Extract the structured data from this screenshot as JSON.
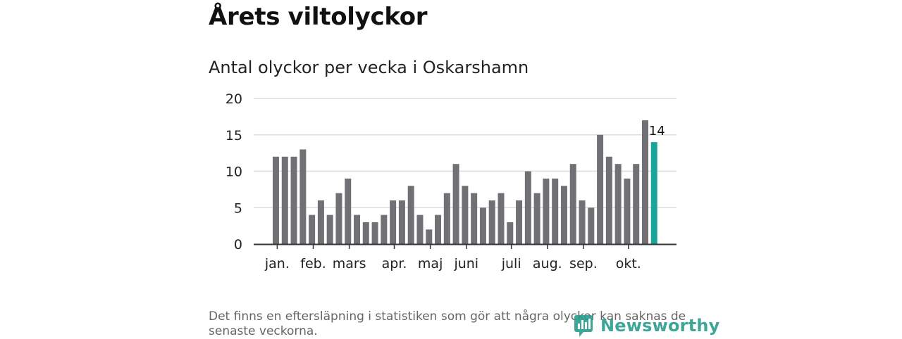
{
  "header": {
    "title": "Årets viltolyckor",
    "subtitle": "Antal olyckor per vecka i Oskarshamn"
  },
  "footer": {
    "note": "Det finns en eftersläpning i statistiken som gör att några olyckor kan saknas de senaste veckorna.",
    "brand": "Newsworthy"
  },
  "colors": {
    "bar": "#717075",
    "highlight": "#1aa59c",
    "grid": "#dddddd",
    "axis": "#333333",
    "brand": "#2a9d8f"
  },
  "chart_data": {
    "type": "bar",
    "title": "Antal olyckor per vecka i Oskarshamn",
    "xlabel": "",
    "ylabel": "",
    "ylim": [
      0,
      20
    ],
    "yticks": [
      0,
      5,
      10,
      15,
      20
    ],
    "grid": true,
    "values": [
      12,
      12,
      12,
      13,
      4,
      6,
      4,
      7,
      9,
      4,
      3,
      3,
      4,
      6,
      6,
      8,
      4,
      2,
      4,
      7,
      11,
      8,
      7,
      5,
      6,
      7,
      3,
      6,
      10,
      7,
      9,
      9,
      8,
      11,
      6,
      5,
      15,
      12,
      11,
      9,
      11,
      17,
      14
    ],
    "highlight_index": 42,
    "highlight_label": "14",
    "month_labels": [
      {
        "label": "jan.",
        "week_pos": 0.5
      },
      {
        "label": "feb.",
        "week_pos": 4.5
      },
      {
        "label": "mars",
        "week_pos": 8.5
      },
      {
        "label": "apr.",
        "week_pos": 13.5
      },
      {
        "label": "maj",
        "week_pos": 17.5
      },
      {
        "label": "juni",
        "week_pos": 21.5
      },
      {
        "label": "juli",
        "week_pos": 26.5
      },
      {
        "label": "aug.",
        "week_pos": 30.5
      },
      {
        "label": "sep.",
        "week_pos": 34.5
      },
      {
        "label": "okt.",
        "week_pos": 39.5
      }
    ]
  }
}
